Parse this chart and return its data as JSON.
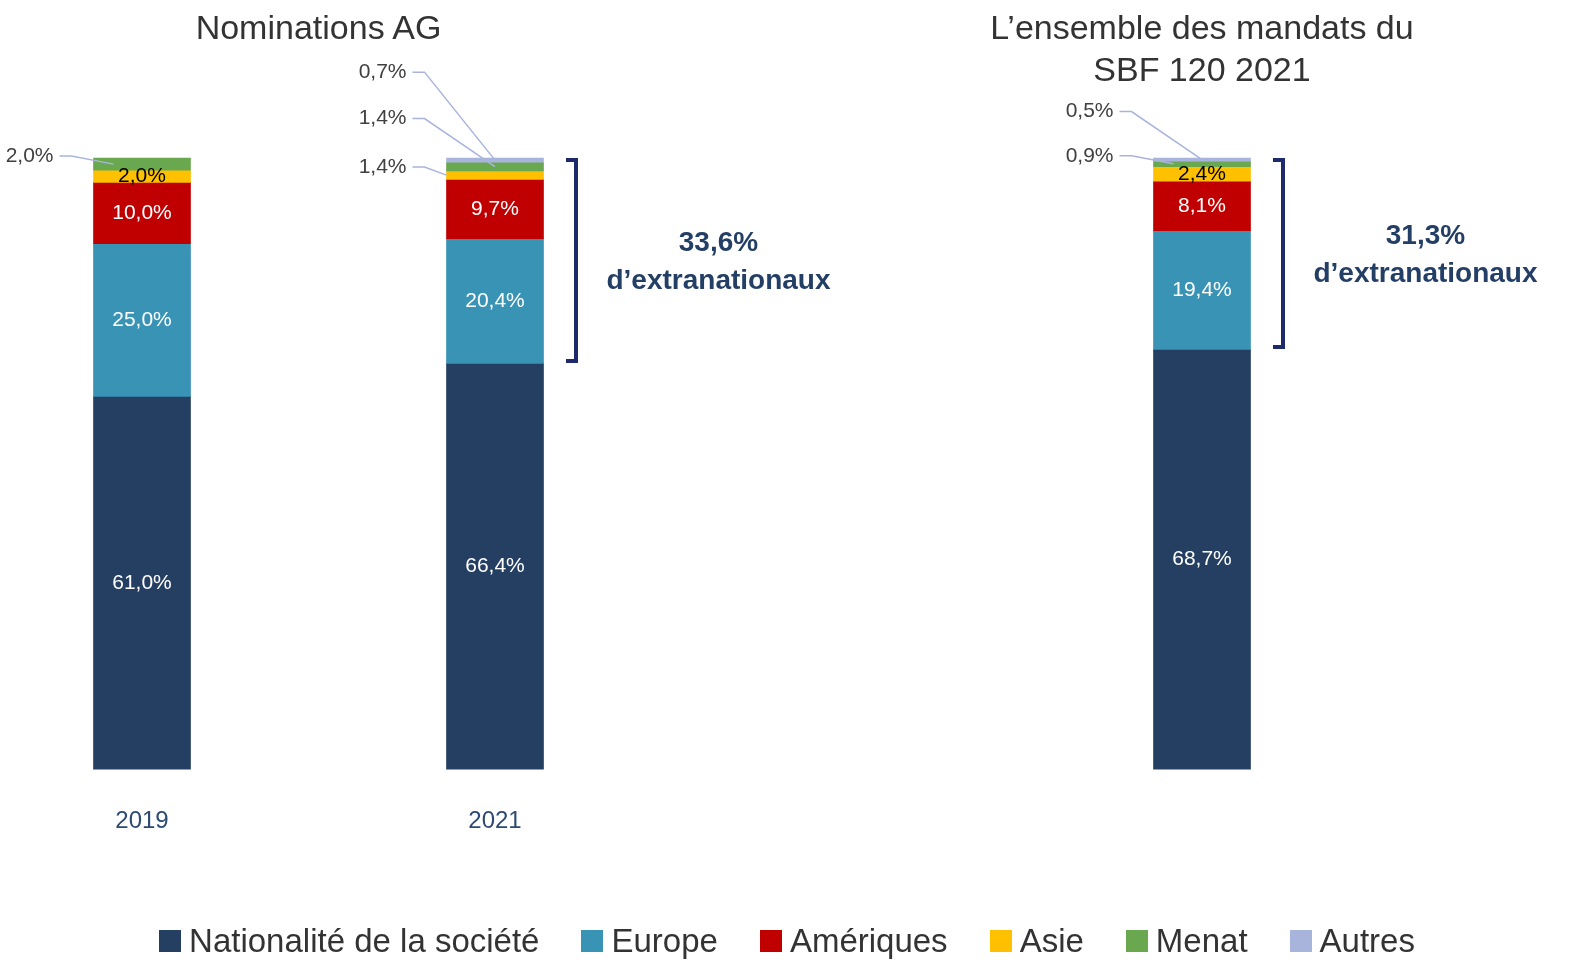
{
  "chart_data": [
    {
      "type": "bar",
      "title": "Nominations AG",
      "categories": [
        "2019",
        "2021"
      ],
      "stacked": true,
      "legend": "bottom",
      "annotations": [
        "33,6% d’extranationaux"
      ],
      "series": [
        {
          "name": "Nationalité de la société",
          "color": "#253f63",
          "values": [
            61.0,
            66.4
          ],
          "value_labels": [
            "61,0%",
            "66,4%"
          ]
        },
        {
          "name": "Europe",
          "color": "#3893b5",
          "values": [
            25.0,
            20.4
          ],
          "value_labels": [
            "25,0%",
            "20,4%"
          ]
        },
        {
          "name": "Amériques",
          "color": "#c00000",
          "values": [
            10.0,
            9.7
          ],
          "value_labels": [
            "10,0%",
            "9,7%"
          ]
        },
        {
          "name": "Asie",
          "color": "#ffc000",
          "values": [
            2.0,
            1.4
          ],
          "value_labels": [
            "2,0%",
            "1,4%"
          ]
        },
        {
          "name": "Menat",
          "color": "#6aa84f",
          "values": [
            2.0,
            1.4
          ],
          "value_labels": [
            "2,0%",
            "1,4%"
          ]
        },
        {
          "name": "Autres",
          "color": "#a9b4dd",
          "values": [
            null,
            0.7
          ],
          "value_labels": [
            null,
            "0,7%"
          ]
        }
      ]
    },
    {
      "type": "bar",
      "title": "L’ensemble des mandats du SBF 120 2021",
      "categories": [
        null
      ],
      "stacked": true,
      "annotations": [
        "31,3% d’extranationaux"
      ],
      "series": [
        {
          "color": "#253f63",
          "values": [
            68.7
          ],
          "value_labels": [
            "68,7%"
          ]
        },
        {
          "color": "#3893b5",
          "values": [
            19.4
          ],
          "value_labels": [
            "19,4%"
          ]
        },
        {
          "color": "#c00000",
          "values": [
            8.1
          ],
          "value_labels": [
            "8,1%"
          ]
        },
        {
          "color": "#ffc000",
          "values": [
            2.4
          ],
          "value_labels": [
            "2,4%"
          ]
        },
        {
          "color": "#6aa84f",
          "values": [
            0.9
          ],
          "value_labels": [
            "0,9%"
          ]
        },
        {
          "color": "#a9b4dd",
          "values": [
            0.5
          ],
          "value_labels": [
            "0,5%"
          ]
        }
      ]
    }
  ]
}
